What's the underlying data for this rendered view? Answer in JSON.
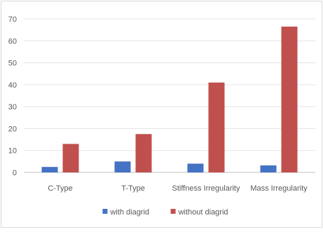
{
  "chart_data": {
    "type": "bar",
    "title": "",
    "xlabel": "",
    "ylabel": "",
    "categories": [
      "C-Type",
      "T-Type",
      "Stiffness Irregularity",
      "Mass Irregularity"
    ],
    "ylim": [
      0,
      70
    ],
    "yticks": [
      0,
      10,
      20,
      30,
      40,
      50,
      60,
      70
    ],
    "grid": true,
    "legend_position": "bottom",
    "series": [
      {
        "name": "with diagrid",
        "color": "#4472C4",
        "values": [
          2.5,
          5,
          4,
          3.2
        ]
      },
      {
        "name": "without diagrid",
        "color": "#C0504D",
        "values": [
          13,
          17.5,
          41,
          66.5
        ]
      }
    ]
  }
}
